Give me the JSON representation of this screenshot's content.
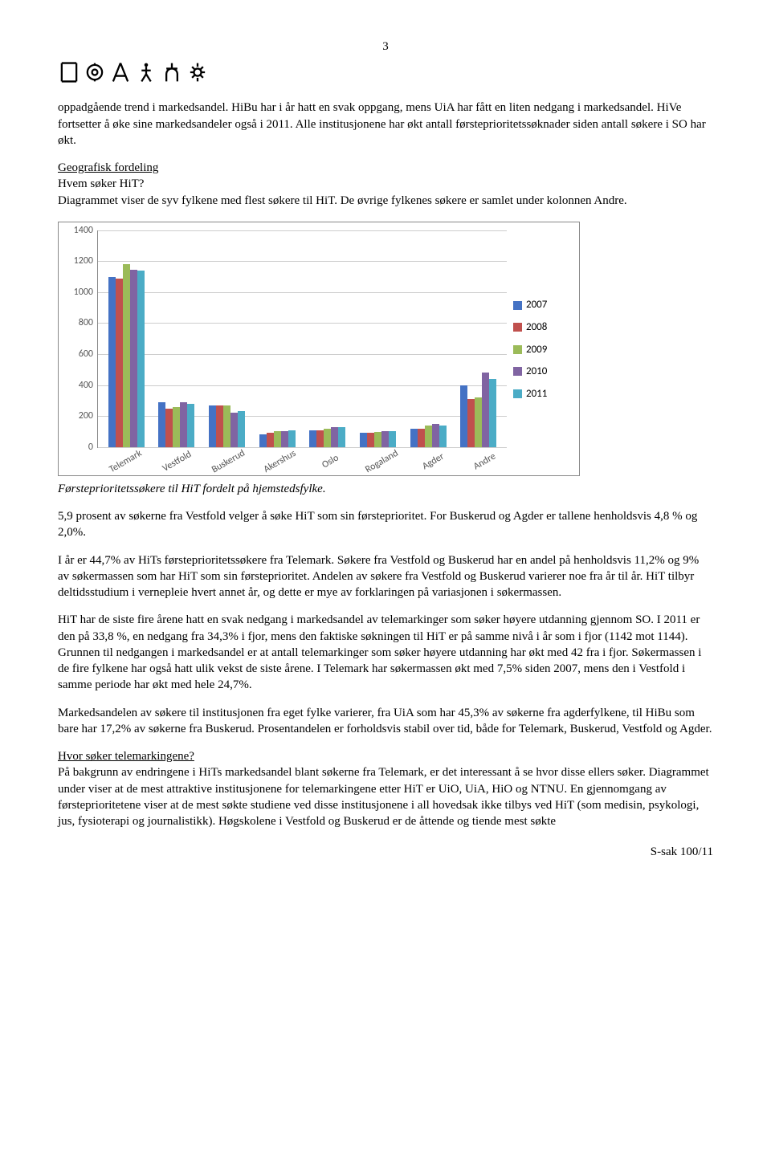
{
  "page_number": "3",
  "paragraphs": {
    "p1": "oppadgående trend i markedsandel. HiBu har i år hatt en svak oppgang, mens UiA har fått en liten nedgang i markedsandel. HiVe fortsetter å øke sine markedsandeler også i 2011. Alle institusjonene har økt antall førsteprioritetssøknader siden antall søkere i SO har økt.",
    "heading1": "Geografisk fordeling",
    "p2a": "Hvem søker HiT?",
    "p2b": "Diagrammet viser de syv fylkene med flest søkere til HiT. De øvrige fylkenes søkere er samlet under kolonnen Andre.",
    "caption": "Førsteprioritetssøkere til HiT fordelt på hjemstedsfylke.",
    "p3": "5,9 prosent av søkerne fra Vestfold velger å søke HiT som sin førsteprioritet. For Buskerud og Agder er tallene henholdsvis 4,8 % og 2,0%.",
    "p4": "I år er 44,7% av HiTs førsteprioritetssøkere fra Telemark. Søkere fra Vestfold og Buskerud har en andel på henholdsvis 11,2% og 9% av søkermassen som har HiT som sin førsteprioritet. Andelen av søkere fra Vestfold og Buskerud varierer noe fra år til år. HiT tilbyr deltidsstudium i vernepleie hvert annet år, og dette er mye av forklaringen på variasjonen i søkermassen.",
    "p5": "HiT har de siste fire årene hatt en svak nedgang i markedsandel av telemarkinger som søker høyere utdanning gjennom SO. I 2011 er den på 33,8 %, en nedgang fra 34,3% i fjor, mens den faktiske søkningen til HiT er på samme nivå i år som i fjor (1142 mot 1144). Grunnen til nedgangen i markedsandel er at antall telemarkinger som søker høyere utdanning har økt med 42 fra i fjor. Søkermassen i de fire fylkene har også hatt ulik vekst de siste årene. I Telemark har søkermassen økt med 7,5% siden 2007, mens den i Vestfold i samme periode har økt med hele 24,7%.",
    "p6": "Markedsandelen av søkere til institusjonen fra eget fylke varierer, fra UiA som har 45,3% av søkerne fra agderfylkene, til HiBu som bare har 17,2% av søkerne fra Buskerud. Prosentandelen er forholdsvis stabil over tid, både for Telemark, Buskerud, Vestfold og Agder.",
    "heading2": "Hvor søker telemarkingene?",
    "p7": "På bakgrunn av endringene i HiTs markedsandel blant søkerne fra Telemark, er det interessant å se hvor disse ellers søker. Diagrammet under viser at de mest attraktive institusjonene for telemarkingene etter HiT er UiO, UiA, HiO og NTNU. En gjennomgang av førsteprioritetene viser at de mest søkte studiene ved disse institusjonene i all hovedsak ikke tilbys ved HiT (som medisin, psykologi, jus, fysioterapi og journalistikk). Høgskolene i Vestfold og Buskerud er de åttende og tiende mest søkte"
  },
  "footer": "S-sak 100/11",
  "chart": {
    "type": "bar",
    "ylim": [
      0,
      1400
    ],
    "ytick_step": 200,
    "yticks": [
      0,
      200,
      400,
      600,
      800,
      1000,
      1200,
      1400
    ],
    "categories": [
      "Telemark",
      "Vestfold",
      "Buskerud",
      "Akershus",
      "Oslo",
      "Rogaland",
      "Agder",
      "Andre"
    ],
    "series": [
      {
        "name": "2007",
        "color": "#4472c4",
        "values": [
          1100,
          290,
          270,
          80,
          110,
          90,
          120,
          400
        ]
      },
      {
        "name": "2008",
        "color": "#c0504d",
        "values": [
          1090,
          250,
          270,
          90,
          110,
          90,
          120,
          310
        ]
      },
      {
        "name": "2009",
        "color": "#9bbb59",
        "values": [
          1180,
          260,
          270,
          100,
          120,
          95,
          140,
          320
        ]
      },
      {
        "name": "2010",
        "color": "#8064a2",
        "values": [
          1144,
          290,
          220,
          100,
          130,
          100,
          150,
          480
        ]
      },
      {
        "name": "2011",
        "color": "#4bacc6",
        "values": [
          1142,
          280,
          230,
          110,
          130,
          100,
          140,
          440
        ]
      }
    ],
    "grid_color": "#cccccc",
    "axis_color": "#888888",
    "label_fontsize": 12,
    "font_family": "Calibri"
  }
}
